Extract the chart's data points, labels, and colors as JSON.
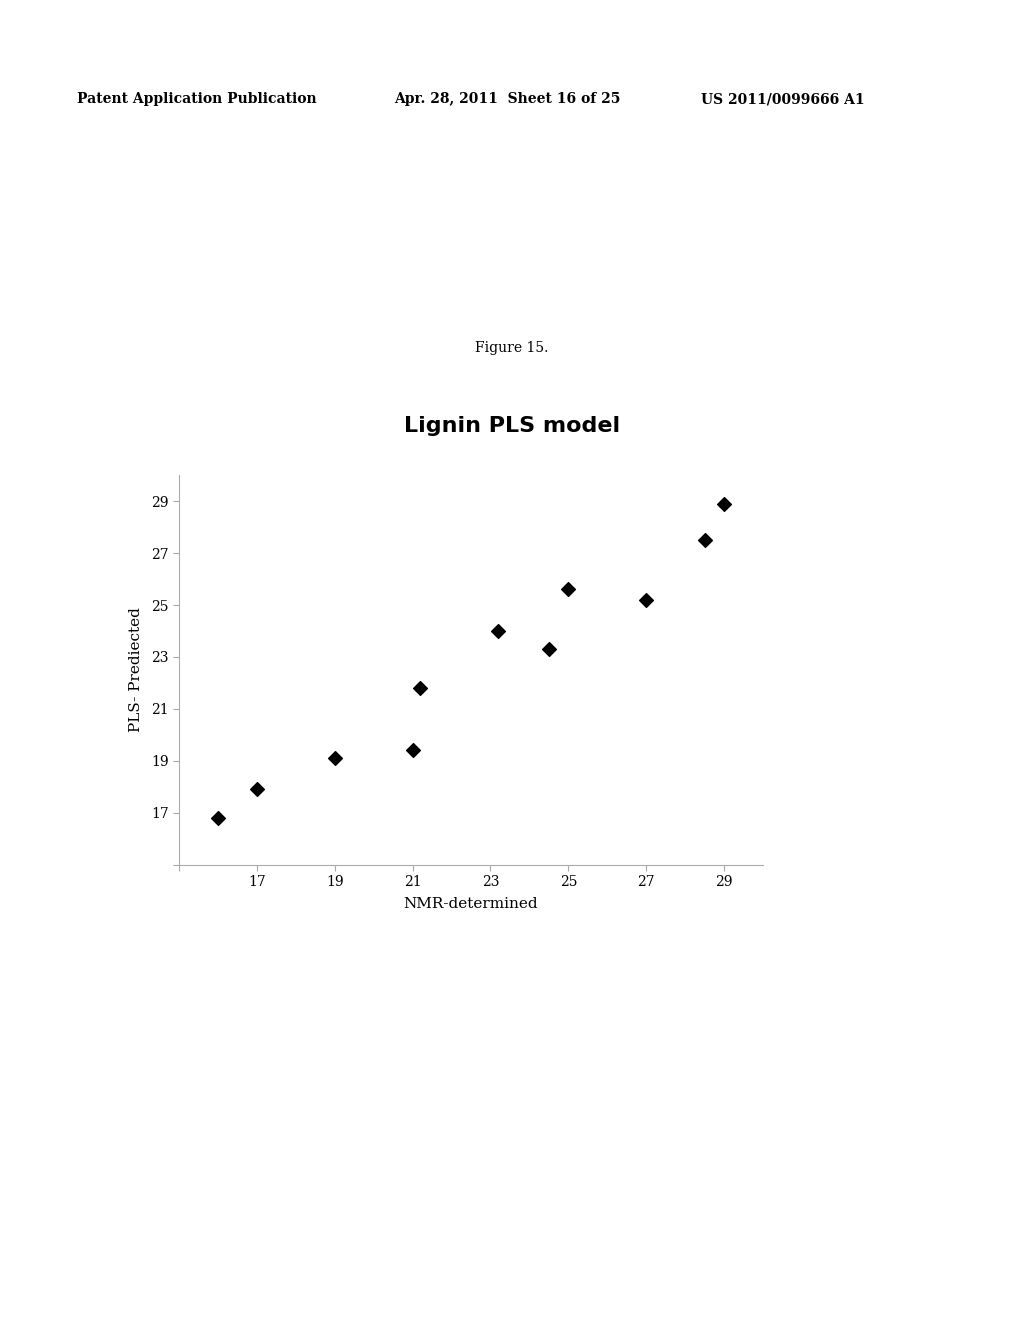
{
  "title": "Lignin PLS model",
  "xlabel": "NMR-determined",
  "ylabel": "PLS- Prediected",
  "figure_caption": "Figure 15.",
  "header_left": "Patent Application Publication",
  "header_mid": "Apr. 28, 2011  Sheet 16 of 25",
  "header_right": "US 2011/0099666 A1",
  "x_data": [
    16.0,
    17.0,
    19.0,
    21.0,
    21.2,
    23.2,
    24.5,
    25.0,
    27.0,
    28.5,
    29.0
  ],
  "y_data": [
    16.8,
    17.9,
    19.1,
    19.4,
    21.8,
    24.0,
    23.3,
    25.6,
    25.2,
    27.5,
    28.9
  ],
  "xlim": [
    15,
    30
  ],
  "ylim": [
    15,
    30
  ],
  "xticks": [
    15,
    17,
    19,
    21,
    23,
    25,
    27,
    29
  ],
  "yticks": [
    15,
    17,
    19,
    21,
    23,
    25,
    27,
    29
  ],
  "marker": "D",
  "marker_size": 7,
  "marker_color": "#000000",
  "bg_color": "#ffffff",
  "title_fontsize": 16,
  "label_fontsize": 11,
  "tick_fontsize": 10,
  "header_fontsize": 10,
  "caption_fontsize": 10
}
